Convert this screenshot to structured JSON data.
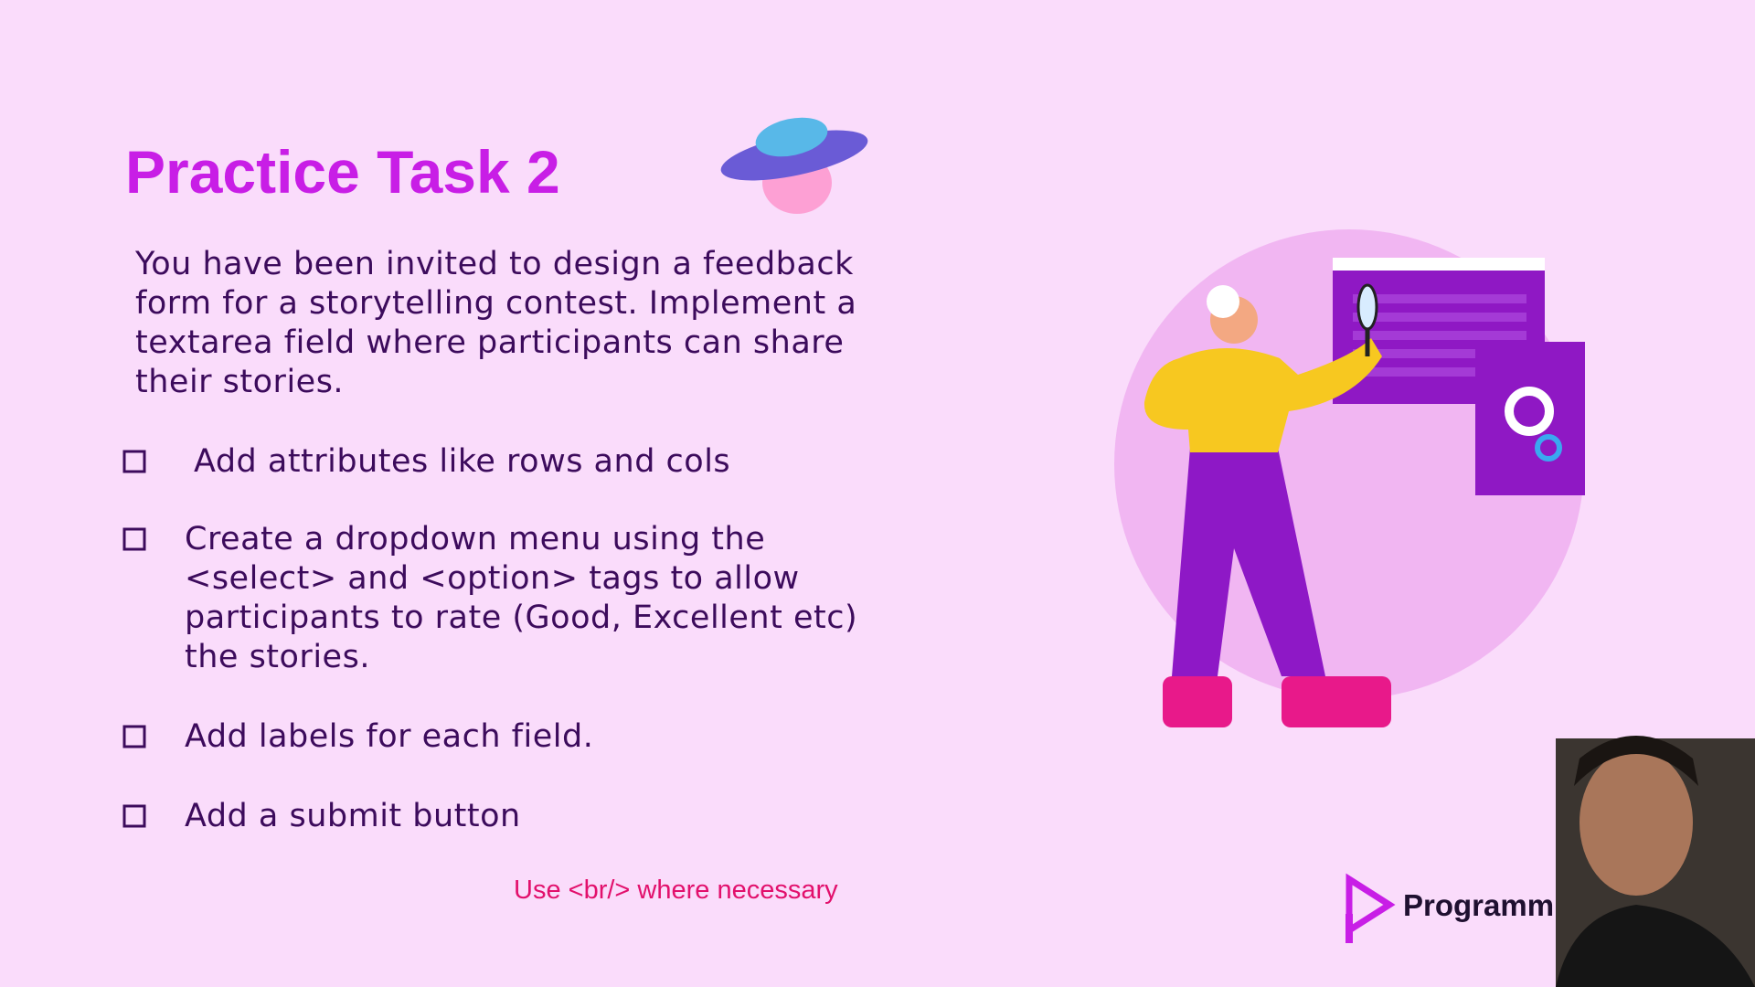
{
  "slide": {
    "title": "Practice Task 2",
    "intro_lines": [
      "You have been invited to design a feedback",
      "form for a storytelling contest. Implement a",
      "textarea field where participants can share",
      "their stories."
    ],
    "tasks": [
      {
        "lines": [
          "Add attributes like rows and cols"
        ]
      },
      {
        "lines": [
          "Create a dropdown menu using the",
          "<select> and <option> tags to allow",
          "participants to rate (Good, Excellent etc)",
          "the stories."
        ]
      },
      {
        "lines": [
          "Add labels for each field."
        ]
      },
      {
        "lines": [
          "Add a submit button"
        ]
      }
    ],
    "note": "Use <br/> where necessary",
    "brand": "Programming Hero"
  }
}
